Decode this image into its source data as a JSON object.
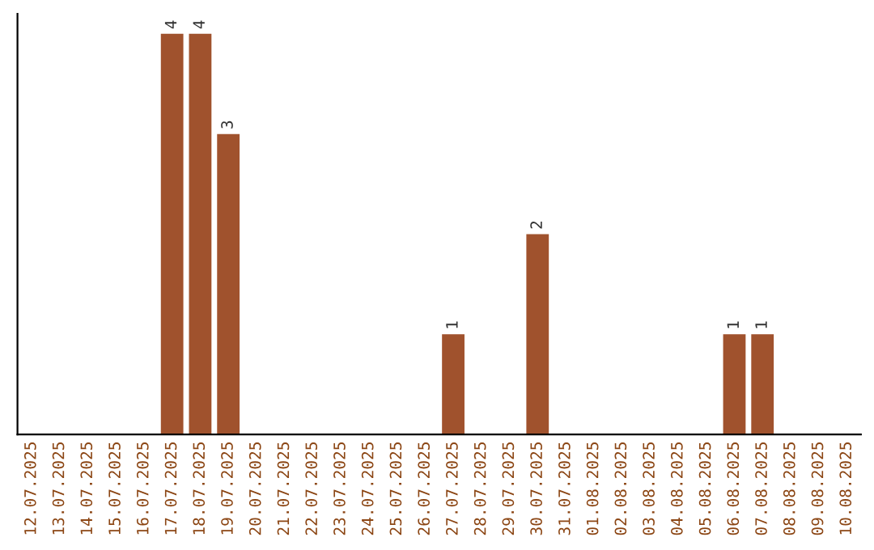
{
  "chart_data": {
    "type": "bar",
    "categories": [
      "12.07.2025",
      "13.07.2025",
      "14.07.2025",
      "15.07.2025",
      "16.07.2025",
      "17.07.2025",
      "18.07.2025",
      "19.07.2025",
      "20.07.2025",
      "21.07.2025",
      "22.07.2025",
      "23.07.2025",
      "24.07.2025",
      "25.07.2025",
      "26.07.2025",
      "27.07.2025",
      "28.07.2025",
      "29.07.2025",
      "30.07.2025",
      "31.07.2025",
      "01.08.2025",
      "02.08.2025",
      "03.08.2025",
      "04.08.2025",
      "05.08.2025",
      "06.08.2025",
      "07.08.2025",
      "08.08.2025",
      "09.08.2025",
      "10.08.2025"
    ],
    "values": [
      0,
      0,
      0,
      0,
      0,
      4,
      4,
      3,
      0,
      0,
      0,
      0,
      0,
      0,
      0,
      1,
      0,
      0,
      2,
      0,
      0,
      0,
      0,
      0,
      0,
      1,
      1,
      0,
      0,
      0
    ],
    "value_labels": [
      null,
      null,
      null,
      null,
      null,
      "4",
      "4",
      "3",
      null,
      null,
      null,
      null,
      null,
      null,
      null,
      "1",
      null,
      null,
      "2",
      null,
      null,
      null,
      null,
      null,
      null,
      "1",
      "1",
      null,
      null,
      null
    ],
    "color": "#a0522d",
    "tick_labels": "x",
    "grid": false,
    "legend": false
  }
}
